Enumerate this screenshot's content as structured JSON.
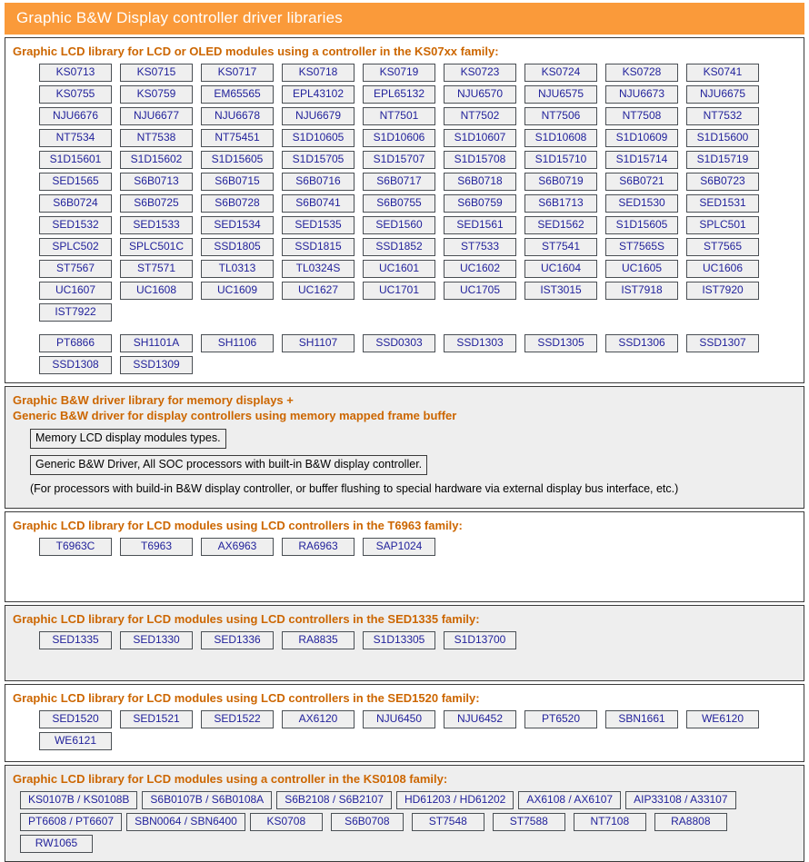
{
  "header": {
    "title": "Graphic B&W Display controller driver libraries"
  },
  "colors": {
    "header_bg": "#FA9A3A",
    "header_text": "#FFFFFF",
    "section_heading_text": "#CC6600",
    "chip_text": "#22229B",
    "chip_bg": "#EFEFEF",
    "chip_border": "#4A4F54",
    "section_alt_bg": "#EEEEEE",
    "section_border": "#3A3A3A"
  },
  "sections": [
    {
      "id": "ks07xx",
      "heading_lines": [
        "Graphic LCD library for LCD or OLED modules using a controller in the KS07xx family:"
      ],
      "groups": [
        [
          "KS0713",
          "KS0715",
          "KS0717",
          "KS0718",
          "KS0719",
          "KS0723",
          "KS0724",
          "KS0728",
          "KS0741",
          "KS0755",
          "KS0759",
          "EM65565",
          "EPL43102",
          "EPL65132",
          "NJU6570",
          "NJU6575",
          "NJU6673",
          "NJU6675",
          "NJU6676",
          "NJU6677",
          "NJU6678",
          "NJU6679",
          "NT7501",
          "NT7502",
          "NT7506",
          "NT7508",
          "NT7532",
          "NT7534",
          "NT7538",
          "NT75451",
          "S1D10605",
          "S1D10606",
          "S1D10607",
          "S1D10608",
          "S1D10609",
          "S1D15600",
          "S1D15601",
          "S1D15602",
          "S1D15605",
          "S1D15705",
          "S1D15707",
          "S1D15708",
          "S1D15710",
          "S1D15714",
          "S1D15719",
          "SED1565",
          "S6B0713",
          "S6B0715",
          "S6B0716",
          "S6B0717",
          "S6B0718",
          "S6B0719",
          "S6B0721",
          "S6B0723",
          "S6B0724",
          "S6B0725",
          "S6B0728",
          "S6B0741",
          "S6B0755",
          "S6B0759",
          "S6B1713",
          "SED1530",
          "SED1531",
          "SED1532",
          "SED1533",
          "SED1534",
          "SED1535",
          "SED1560",
          "SED1561",
          "SED1562",
          "S1D15605",
          "SPLC501",
          "SPLC502",
          "SPLC501C",
          "SSD1805",
          "SSD1815",
          "SSD1852",
          "ST7533",
          "ST7541",
          "ST7565S",
          "ST7565",
          "ST7567",
          "ST7571",
          "TL0313",
          "TL0324S",
          "UC1601",
          "UC1602",
          "UC1604",
          "UC1605",
          "UC1606",
          "UC1607",
          "UC1608",
          "UC1609",
          "UC1627",
          "UC1701",
          "UC1705",
          "IST3015",
          "IST7918",
          "IST7920",
          "IST7922"
        ],
        [
          "PT6866",
          "SH1101A",
          "SH1106",
          "SH1107",
          "SSD0303",
          "SSD1303",
          "SSD1305",
          "SSD1306",
          "SSD1307",
          "SSD1308",
          "SSD1309"
        ]
      ]
    },
    {
      "id": "memory",
      "heading_lines": [
        "Graphic B&W driver library for memory displays +",
        "Generic B&W driver for display controllers using memory mapped frame buffer"
      ],
      "boxes": [
        "Memory LCD display modules types.",
        "Generic B&W Driver, All SOC processors with built-in B&W display controller."
      ],
      "note": "(For processors with build-in B&W display controller, or buffer flushing to special hardware via external display bus interface, etc.)"
    },
    {
      "id": "t6963",
      "heading_lines": [
        "Graphic LCD library for LCD modules using LCD controllers in the T6963 family:"
      ],
      "groups": [
        [
          "T6963C",
          "T6963",
          "AX6963",
          "RA6963",
          "SAP1024"
        ]
      ]
    },
    {
      "id": "sed1335",
      "heading_lines": [
        "Graphic LCD library for LCD modules using LCD controllers in the SED1335 family:"
      ],
      "groups": [
        [
          "SED1335",
          "SED1330",
          "SED1336",
          "RA8835",
          "S1D13305",
          "S1D13700"
        ]
      ]
    },
    {
      "id": "sed1520",
      "heading_lines": [
        "Graphic LCD library for LCD modules using LCD controllers in the SED1520 family:"
      ],
      "groups": [
        [
          "SED1520",
          "SED1521",
          "SED1522",
          "AX6120",
          "NJU6450",
          "NJU6452",
          "PT6520",
          "SBN1661",
          "WE6120",
          "WE6121"
        ]
      ]
    },
    {
      "id": "ks0108",
      "heading_lines": [
        "Graphic LCD library for LCD modules using a controller in the KS0108 family:"
      ],
      "groups": [
        [
          "KS0107B / KS0108B",
          "S6B0107B / S6B0108A",
          "S6B2108 / S6B2107",
          "HD61203 / HD61202",
          "AX6108 / AX6107",
          "AIP33108 / A33107",
          "PT6608 / PT6607",
          "SBN0064 / SBN6400",
          "KS0708",
          "S6B0708",
          "ST7548",
          "ST7588",
          "NT7108",
          "RA8808",
          "RW1065"
        ]
      ]
    }
  ]
}
